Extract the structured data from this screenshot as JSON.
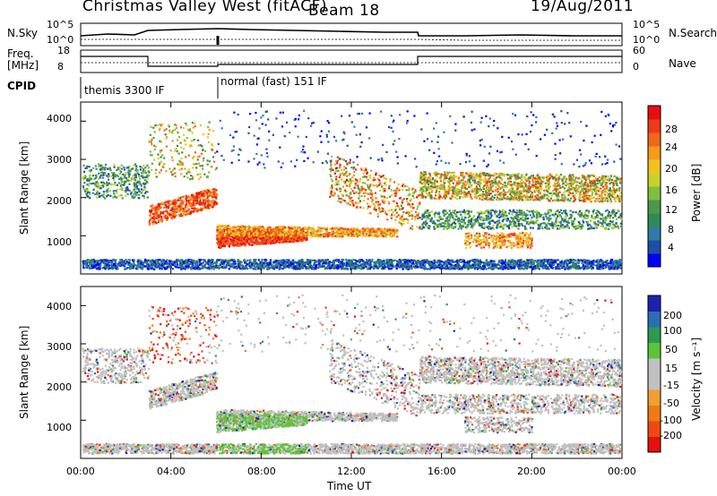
{
  "header": {
    "station": "Christmas Valley West (fitACF)",
    "beam": "Beam 18",
    "date": "19/Aug/2011"
  },
  "panels_top": {
    "nsky_label": "N.Sky",
    "nsky_ticks": [
      "10^5",
      "10^0"
    ],
    "nsearch_label": "N.Search",
    "nsearch_ticks": [
      "10^5",
      "10^0"
    ],
    "freq_label_1": "Freq.",
    "freq_label_2": "[MHz]",
    "freq_ticks": [
      "18",
      "8"
    ],
    "nave_label": "Nave",
    "nave_ticks": [
      "60",
      "0"
    ],
    "cpid_label": "CPID",
    "cpid_modes": [
      "themis 3300 IF",
      "normal (fast) 151 IF"
    ]
  },
  "chart_data": [
    {
      "type": "heatmap",
      "name": "power",
      "ylabel": "Slant Range [km]",
      "yticks": [
        "4000",
        "3000",
        "2000",
        "1000"
      ],
      "xticks": [
        "00:00",
        "04:00",
        "08:00",
        "12:00",
        "16:00",
        "20:00",
        "00:00"
      ],
      "colorbar_label": "Power [dB]",
      "colorbar_ticks": [
        "28",
        "24",
        "20",
        "16",
        "12",
        "8",
        "4"
      ],
      "colorbar_colors": [
        "#0000ff",
        "#1e4fa8",
        "#2f7aa8",
        "#2e8b57",
        "#4a9a4a",
        "#7fbf3f",
        "#c8d22a",
        "#f3c21c",
        "#f89a1a",
        "#f2671a",
        "#ee3a18",
        "#e61010"
      ]
    },
    {
      "type": "heatmap",
      "name": "velocity",
      "ylabel": "Slant Range [km]",
      "yticks": [
        "4000",
        "3000",
        "2000",
        "1000"
      ],
      "xticks": [
        "00:00",
        "04:00",
        "08:00",
        "12:00",
        "16:00",
        "20:00",
        "00:00"
      ],
      "xlabel": "Time UT",
      "colorbar_label": "Velocity [m s⁻¹]",
      "colorbar_ticks": [
        "200",
        "100",
        "50",
        "15",
        "-15",
        "-50",
        "-100",
        "-200"
      ],
      "colorbar_colors": [
        "#2020b0",
        "#2a6fb5",
        "#2f9a4f",
        "#5ac43a",
        "#c0c0c0",
        "#c0c0c0",
        "#f0a030",
        "#f07a18",
        "#ee4a10",
        "#e61010"
      ]
    }
  ]
}
